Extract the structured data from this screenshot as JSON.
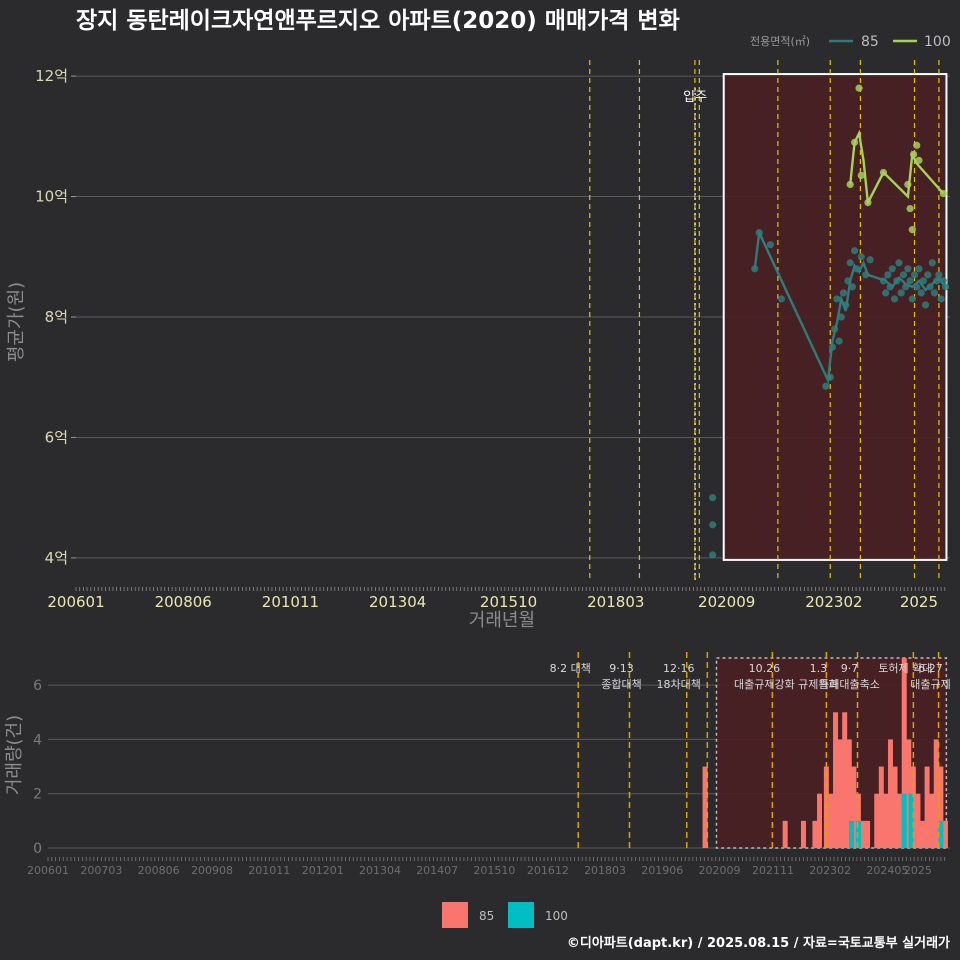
{
  "title": "장지 동탄레이크자연앤푸르지오 아파트(2020) 매매가격 변화",
  "footer": "©디아파트(dapt.kr) / 2025.08.15 / 자료=국토교통부 실거래가",
  "colors": {
    "background": "#2b2b2d",
    "series_85": "#2e7d7d",
    "series_100": "#a6d15a",
    "bar_85": "#f8766d",
    "bar_100": "#00bfc4",
    "policy_line": "#e6c200",
    "policy_line_bottom": "#e0a000",
    "highlight_fill": "#4a1f22"
  },
  "chart_data": [
    {
      "type": "line",
      "title": "매매가격",
      "xlabel": "거래년월",
      "ylabel": "평균가(원)",
      "legend_title": "전용면적(㎡)",
      "legend": [
        "85",
        "100"
      ],
      "x_ticks": [
        "200601",
        "200806",
        "201011",
        "201304",
        "201510",
        "201803",
        "202009",
        "202302",
        "2025"
      ],
      "y_ticks": [
        {
          "value": 4,
          "label": "4억"
        },
        {
          "value": 6,
          "label": "6억"
        },
        {
          "value": 8,
          "label": "8억"
        },
        {
          "value": 10,
          "label": "10억"
        },
        {
          "value": 12,
          "label": "12억"
        }
      ],
      "ylim": [
        3.6,
        12.3
      ],
      "xlim": [
        2006.0,
        2025.7
      ],
      "annotation": {
        "label": "입주",
        "x": 2020.0
      },
      "highlight_range": [
        2020.6,
        2025.62
      ],
      "policy_lines": [
        2017.58,
        2018.7,
        2019.95,
        2020.05,
        2021.82,
        2023.0,
        2023.68,
        2024.9,
        2025.45
      ],
      "series": [
        {
          "name": "85",
          "line": [
            [
              2021.3,
              8.8
            ],
            [
              2021.4,
              9.4
            ],
            [
              2022.95,
              6.95
            ],
            [
              2023.05,
              7.6
            ],
            [
              2023.15,
              7.9
            ],
            [
              2023.25,
              8.3
            ],
            [
              2023.35,
              8.1
            ],
            [
              2023.45,
              8.6
            ],
            [
              2023.55,
              8.85
            ],
            [
              2023.65,
              8.75
            ],
            [
              2023.75,
              8.9
            ],
            [
              2023.85,
              8.7
            ],
            [
              2024.25,
              8.6
            ],
            [
              2024.4,
              8.5
            ],
            [
              2024.55,
              8.65
            ],
            [
              2024.7,
              8.55
            ],
            [
              2024.85,
              8.5
            ],
            [
              2025.0,
              8.6
            ],
            [
              2025.15,
              8.45
            ],
            [
              2025.3,
              8.55
            ],
            [
              2025.45,
              8.65
            ],
            [
              2025.6,
              8.5
            ]
          ],
          "points": [
            [
              2020.35,
              4.05
            ],
            [
              2020.35,
              4.55
            ],
            [
              2020.35,
              5.0
            ],
            [
              2021.3,
              8.8
            ],
            [
              2021.4,
              9.4
            ],
            [
              2021.65,
              9.2
            ],
            [
              2021.9,
              8.3
            ],
            [
              2022.9,
              6.85
            ],
            [
              2023.0,
              7.0
            ],
            [
              2023.05,
              7.5
            ],
            [
              2023.1,
              7.8
            ],
            [
              2023.15,
              8.3
            ],
            [
              2023.2,
              7.6
            ],
            [
              2023.25,
              8.0
            ],
            [
              2023.3,
              8.4
            ],
            [
              2023.35,
              8.2
            ],
            [
              2023.4,
              8.6
            ],
            [
              2023.45,
              8.9
            ],
            [
              2023.5,
              8.5
            ],
            [
              2023.55,
              9.1
            ],
            [
              2023.6,
              8.8
            ],
            [
              2023.7,
              9.0
            ],
            [
              2023.8,
              8.7
            ],
            [
              2023.9,
              8.95
            ],
            [
              2024.2,
              8.6
            ],
            [
              2024.25,
              8.4
            ],
            [
              2024.3,
              8.7
            ],
            [
              2024.35,
              8.5
            ],
            [
              2024.4,
              8.8
            ],
            [
              2024.45,
              8.3
            ],
            [
              2024.5,
              8.6
            ],
            [
              2024.55,
              8.9
            ],
            [
              2024.6,
              8.4
            ],
            [
              2024.65,
              8.7
            ],
            [
              2024.7,
              8.5
            ],
            [
              2024.75,
              8.8
            ],
            [
              2024.8,
              8.6
            ],
            [
              2024.85,
              8.3
            ],
            [
              2024.9,
              8.7
            ],
            [
              2024.95,
              8.5
            ],
            [
              2025.0,
              8.8
            ],
            [
              2025.05,
              8.4
            ],
            [
              2025.1,
              8.6
            ],
            [
              2025.15,
              8.2
            ],
            [
              2025.2,
              8.7
            ],
            [
              2025.25,
              8.5
            ],
            [
              2025.3,
              8.9
            ],
            [
              2025.35,
              8.4
            ],
            [
              2025.4,
              8.6
            ],
            [
              2025.45,
              8.7
            ],
            [
              2025.5,
              8.3
            ],
            [
              2025.55,
              8.6
            ],
            [
              2025.6,
              8.5
            ]
          ]
        },
        {
          "name": "100",
          "line": [
            [
              2023.45,
              10.2
            ],
            [
              2023.55,
              10.9
            ],
            [
              2023.65,
              11.05
            ],
            [
              2023.75,
              10.6
            ],
            [
              2023.85,
              9.9
            ],
            [
              2024.2,
              10.4
            ],
            [
              2024.75,
              10.0
            ],
            [
              2024.85,
              10.7
            ],
            [
              2024.95,
              10.55
            ],
            [
              2025.55,
              10.05
            ]
          ],
          "points": [
            [
              2023.45,
              10.2
            ],
            [
              2023.55,
              10.9
            ],
            [
              2023.65,
              11.8
            ],
            [
              2023.7,
              10.35
            ],
            [
              2023.85,
              9.9
            ],
            [
              2024.2,
              10.4
            ],
            [
              2024.75,
              10.2
            ],
            [
              2024.8,
              9.8
            ],
            [
              2024.85,
              9.45
            ],
            [
              2024.88,
              10.7
            ],
            [
              2024.95,
              10.85
            ],
            [
              2025.0,
              10.6
            ],
            [
              2025.55,
              10.05
            ]
          ]
        }
      ]
    },
    {
      "type": "bar",
      "title": "거래량",
      "xlabel": "",
      "ylabel": "거래량(건)",
      "legend": [
        "85",
        "100"
      ],
      "y_ticks": [
        0,
        2,
        4,
        6
      ],
      "ylim": [
        -0.2,
        7.0
      ],
      "x_ticks": [
        "200601",
        "200703",
        "200806",
        "200908",
        "201011",
        "201201",
        "201304",
        "201407",
        "201510",
        "201612",
        "201803",
        "201906",
        "202009",
        "202111",
        "202302",
        "202405",
        "2025"
      ],
      "policy_lines": [
        {
          "x": 2017.58,
          "labels": [
            "8·2 대책"
          ]
        },
        {
          "x": 2018.7,
          "labels": [
            "9·13",
            "종합대책"
          ]
        },
        {
          "x": 2019.95,
          "labels": [
            "12·16",
            "18차대책"
          ]
        },
        {
          "x": 2020.4,
          "labels": []
        },
        {
          "x": 2021.82,
          "labels": [
            "10.26",
            "대출규제강화"
          ]
        },
        {
          "x": 2023.0,
          "labels": [
            "1.3",
            "규제완화"
          ]
        },
        {
          "x": 2023.68,
          "labels": [
            "9·7",
            "특례대출축소"
          ]
        },
        {
          "x": 2024.9,
          "labels": [
            "토허제 확대"
          ]
        },
        {
          "x": 2025.45,
          "labels": [
            "6·27",
            "대출규제"
          ]
        }
      ],
      "highlight_range": [
        2020.6,
        2025.62
      ],
      "series": [
        {
          "name": "85",
          "bars": [
            [
              2020.35,
              3
            ],
            [
              2022.1,
              1
            ],
            [
              2022.5,
              1
            ],
            [
              2022.75,
              1
            ],
            [
              2022.85,
              2
            ],
            [
              2023.0,
              3
            ],
            [
              2023.1,
              2
            ],
            [
              2023.2,
              5
            ],
            [
              2023.3,
              4
            ],
            [
              2023.4,
              5
            ],
            [
              2023.5,
              4
            ],
            [
              2023.6,
              3
            ],
            [
              2023.7,
              2
            ],
            [
              2023.8,
              1
            ],
            [
              2023.9,
              1
            ],
            [
              2024.1,
              2
            ],
            [
              2024.2,
              3
            ],
            [
              2024.3,
              2
            ],
            [
              2024.4,
              4
            ],
            [
              2024.5,
              3
            ],
            [
              2024.6,
              2
            ],
            [
              2024.7,
              7
            ],
            [
              2024.8,
              4
            ],
            [
              2024.9,
              3
            ],
            [
              2025.0,
              2
            ],
            [
              2025.1,
              1
            ],
            [
              2025.2,
              3
            ],
            [
              2025.3,
              2
            ],
            [
              2025.4,
              4
            ],
            [
              2025.5,
              3
            ],
            [
              2025.6,
              1
            ]
          ]
        },
        {
          "name": "100",
          "bars": [
            [
              2023.55,
              1
            ],
            [
              2023.7,
              1
            ],
            [
              2024.7,
              2
            ],
            [
              2024.85,
              2
            ],
            [
              2025.5,
              1
            ]
          ]
        }
      ]
    }
  ]
}
